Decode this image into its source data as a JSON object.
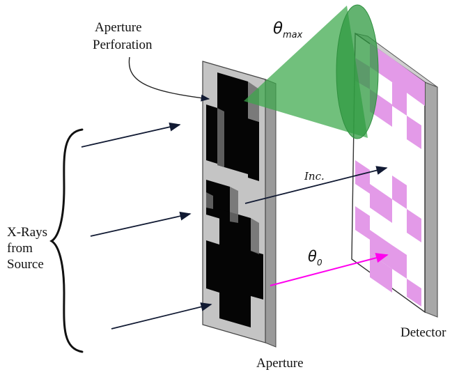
{
  "labels": {
    "aperture_perforation_line1": "Aperture",
    "aperture_perforation_line2": "Perforation",
    "xrays_line1": "X-Rays",
    "xrays_line2": "from",
    "xrays_line3": "Source",
    "aperture": "Aperture",
    "detector": "Detector",
    "inc": "Inc.",
    "theta_max_symbol": "θ",
    "theta_max_sub": "max",
    "theta_0_symbol": "θ",
    "theta_0_sub": "0"
  },
  "colors": {
    "cone": "#3aa84a",
    "cone_edge": "#2f8f3f",
    "detector_pixel": "#e39ae8",
    "theta0_ray": "#ff00ee",
    "ray": "#111a33",
    "frame": "#b9b9b9",
    "frame_dark": "#8a8a8a"
  }
}
